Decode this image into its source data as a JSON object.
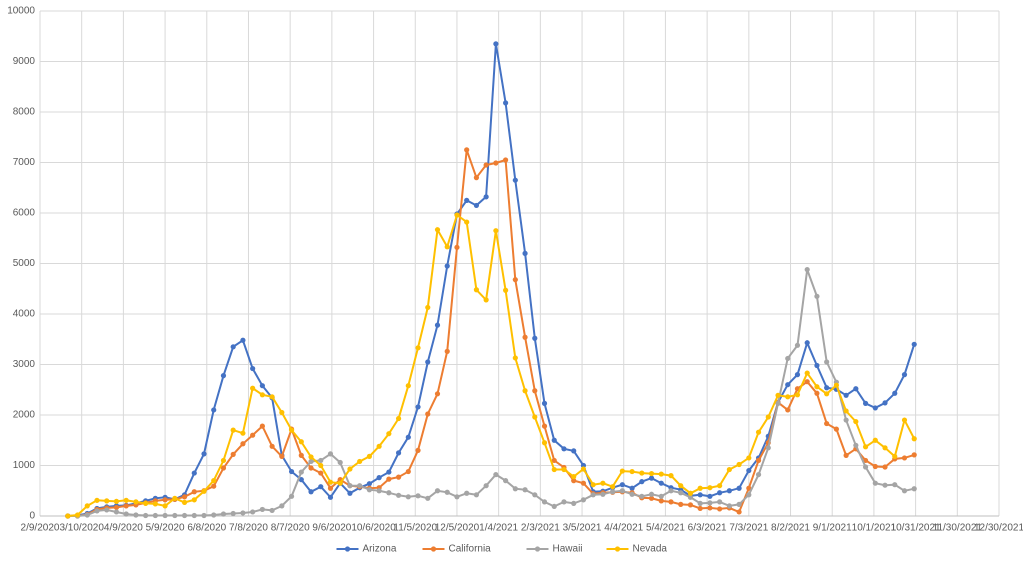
{
  "chart_data": {
    "type": "line",
    "x": [
      "2/29/2020",
      "3/7/2020",
      "3/14/2020",
      "3/21/2020",
      "3/28/2020",
      "4/4/2020",
      "4/11/2020",
      "4/18/2020",
      "4/25/2020",
      "5/2/2020",
      "5/9/2020",
      "5/16/2020",
      "5/23/2020",
      "5/30/2020",
      "6/6/2020",
      "6/13/2020",
      "6/20/2020",
      "6/27/2020",
      "7/4/2020",
      "7/11/2020",
      "7/18/2020",
      "7/25/2020",
      "8/1/2020",
      "8/8/2020",
      "8/15/2020",
      "8/22/2020",
      "8/29/2020",
      "9/5/2020",
      "9/12/2020",
      "9/19/2020",
      "9/26/2020",
      "10/3/2020",
      "10/10/2020",
      "10/17/2020",
      "10/24/2020",
      "10/31/2020",
      "11/7/2020",
      "11/14/2020",
      "11/21/2020",
      "11/28/2020",
      "12/5/2020",
      "12/12/2020",
      "12/19/2020",
      "12/26/2020",
      "1/2/2021",
      "1/9/2021",
      "1/16/2021",
      "1/23/2021",
      "1/30/2021",
      "2/6/2021",
      "2/13/2021",
      "2/20/2021",
      "2/27/2021",
      "3/6/2021",
      "3/13/2021",
      "3/20/2021",
      "3/27/2021",
      "4/3/2021",
      "4/10/2021",
      "4/17/2021",
      "4/24/2021",
      "5/1/2021",
      "5/8/2021",
      "5/15/2021",
      "5/22/2021",
      "5/29/2021",
      "6/5/2021",
      "6/12/2021",
      "6/19/2021",
      "6/26/2021",
      "7/3/2021",
      "7/10/2021",
      "7/17/2021",
      "7/24/2021",
      "7/31/2021",
      "8/7/2021",
      "8/14/2021",
      "8/21/2021",
      "8/28/2021",
      "9/4/2021",
      "9/11/2021",
      "9/18/2021",
      "9/25/2021",
      "10/2/2021",
      "10/9/2021",
      "10/16/2021",
      "10/23/2021",
      "10/30/2021"
    ],
    "series": [
      {
        "name": "Arizona",
        "color": "#4472c4",
        "values": [
          0,
          10,
          50,
          150,
          180,
          200,
          210,
          250,
          300,
          350,
          370,
          330,
          420,
          850,
          1230,
          2100,
          2780,
          3350,
          3480,
          2920,
          2580,
          2340,
          1200,
          880,
          720,
          480,
          580,
          370,
          650,
          450,
          560,
          640,
          760,
          870,
          1250,
          1560,
          2160,
          3050,
          3780,
          4950,
          5980,
          6250,
          6150,
          6320,
          9350,
          8180,
          6650,
          5200,
          3520,
          2230,
          1500,
          1330,
          1290,
          1000,
          480,
          490,
          560,
          620,
          550,
          680,
          750,
          650,
          560,
          520,
          400,
          420,
          390,
          460,
          500,
          550,
          900,
          1150,
          1580,
          2250,
          2600,
          2800,
          3430,
          2980,
          2540,
          2510,
          2390,
          2520,
          2230,
          2140,
          2240,
          2430,
          2800,
          3400
        ]
      },
      {
        "name": "California",
        "color": "#ed7d31",
        "values": [
          0,
          0,
          30,
          130,
          160,
          170,
          200,
          220,
          260,
          300,
          320,
          330,
          380,
          480,
          500,
          590,
          950,
          1220,
          1430,
          1600,
          1780,
          1380,
          1180,
          1720,
          1200,
          950,
          850,
          550,
          720,
          600,
          580,
          550,
          560,
          730,
          770,
          880,
          1300,
          2020,
          2420,
          3260,
          5320,
          7250,
          6700,
          6950,
          6990,
          7050,
          4680,
          3540,
          2480,
          1780,
          1100,
          960,
          700,
          650,
          440,
          460,
          470,
          480,
          460,
          360,
          350,
          300,
          280,
          230,
          220,
          150,
          160,
          140,
          160,
          80,
          550,
          1100,
          1450,
          2250,
          2100,
          2520,
          2660,
          2430,
          1830,
          1720,
          1200,
          1330,
          1100,
          980,
          970,
          1130,
          1150,
          1210
        ]
      },
      {
        "name": "Hawaii",
        "color": "#a5a5a5",
        "values": [
          0,
          0,
          20,
          100,
          120,
          80,
          40,
          20,
          10,
          10,
          10,
          10,
          10,
          10,
          10,
          20,
          40,
          50,
          60,
          80,
          130,
          110,
          200,
          390,
          870,
          1080,
          1100,
          1230,
          1060,
          600,
          600,
          520,
          500,
          460,
          410,
          380,
          400,
          350,
          500,
          470,
          380,
          450,
          420,
          600,
          820,
          700,
          540,
          520,
          420,
          280,
          190,
          280,
          250,
          320,
          420,
          430,
          480,
          500,
          430,
          390,
          430,
          390,
          500,
          460,
          370,
          250,
          260,
          280,
          200,
          230,
          420,
          820,
          1350,
          2230,
          3120,
          3380,
          4880,
          4350,
          3050,
          2650,
          1900,
          1400,
          970,
          650,
          610,
          620,
          500,
          540
        ]
      },
      {
        "name": "Nevada",
        "color": "#ffc000",
        "values": [
          0,
          20,
          200,
          310,
          300,
          290,
          310,
          280,
          250,
          240,
          200,
          350,
          270,
          320,
          490,
          700,
          1100,
          1700,
          1640,
          2530,
          2400,
          2360,
          2050,
          1700,
          1470,
          1170,
          1000,
          670,
          650,
          930,
          1080,
          1180,
          1380,
          1630,
          1930,
          2580,
          3330,
          4130,
          5670,
          5330,
          5960,
          5820,
          4480,
          4280,
          5650,
          4470,
          3130,
          2480,
          1960,
          1450,
          920,
          920,
          780,
          930,
          620,
          650,
          580,
          890,
          880,
          850,
          840,
          830,
          800,
          600,
          450,
          550,
          560,
          600,
          920,
          1020,
          1150,
          1660,
          1960,
          2390,
          2360,
          2400,
          2830,
          2560,
          2420,
          2590,
          2080,
          1870,
          1370,
          1500,
          1350,
          1180,
          1900,
          1530
        ]
      }
    ],
    "xlim": [
      "2/9/2020",
      "12/30/2021"
    ],
    "xticks": [
      "2/9/2020",
      "3/10/2020",
      "4/9/2020",
      "5/9/2020",
      "6/8/2020",
      "7/8/2020",
      "8/7/2020",
      "9/6/2020",
      "10/6/2020",
      "11/5/2020",
      "12/5/2020",
      "1/4/2021",
      "2/3/2021",
      "3/5/2021",
      "4/4/2021",
      "5/4/2021",
      "6/3/2021",
      "7/3/2021",
      "8/2/2021",
      "9/1/2021",
      "10/1/2021",
      "10/31/2021",
      "11/30/2021",
      "12/30/2021"
    ],
    "ylim": [
      0,
      10000
    ],
    "yticks": [
      0,
      1000,
      2000,
      3000,
      4000,
      5000,
      6000,
      7000,
      8000,
      9000,
      10000
    ],
    "grid": true,
    "legend": "bottom"
  }
}
